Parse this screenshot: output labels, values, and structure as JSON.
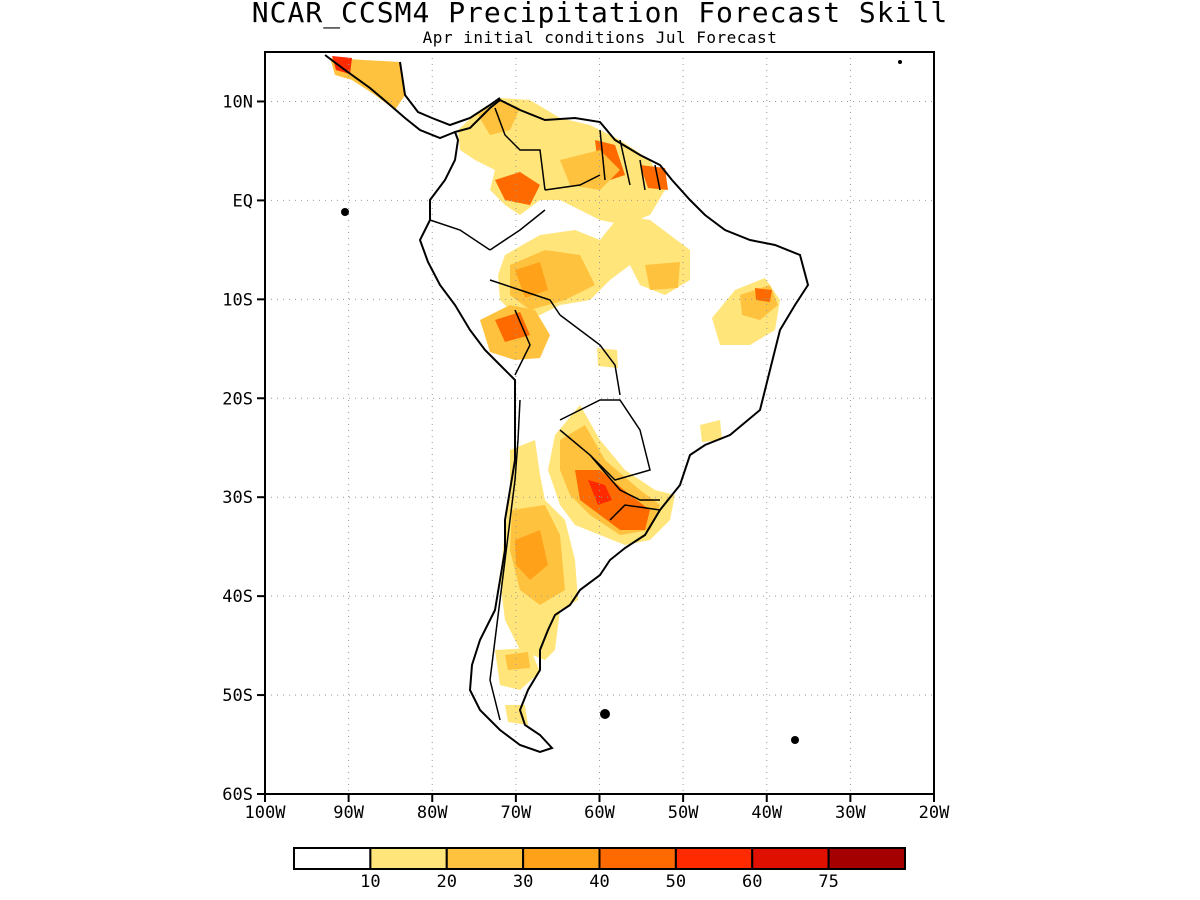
{
  "title": "NCAR_CCSM4 Precipitation Forecast Skill",
  "subtitle": "Apr initial conditions  Jul Forecast",
  "map": {
    "lon_range": [
      -100,
      -20
    ],
    "lat_range": [
      -60,
      15
    ],
    "lat_ticks": [
      {
        "value": 10,
        "label": "10N"
      },
      {
        "value": 0,
        "label": "EQ"
      },
      {
        "value": -10,
        "label": "10S"
      },
      {
        "value": -20,
        "label": "20S"
      },
      {
        "value": -30,
        "label": "30S"
      },
      {
        "value": -40,
        "label": "40S"
      },
      {
        "value": -50,
        "label": "50S"
      },
      {
        "value": -60,
        "label": "60S"
      }
    ],
    "lon_ticks": [
      {
        "value": -100,
        "label": "100W"
      },
      {
        "value": -90,
        "label": "90W"
      },
      {
        "value": -80,
        "label": "80W"
      },
      {
        "value": -70,
        "label": "70W"
      },
      {
        "value": -60,
        "label": "60W"
      },
      {
        "value": -50,
        "label": "50W"
      },
      {
        "value": -40,
        "label": "40W"
      },
      {
        "value": -30,
        "label": "30W"
      },
      {
        "value": -20,
        "label": "20W"
      }
    ],
    "grid": "dotted",
    "colorbar": {
      "colors": [
        "#ffffff",
        "#ffe57a",
        "#ffc23f",
        "#ffa21a",
        "#ff6a00",
        "#ff2a00",
        "#e01000",
        "#a50000"
      ],
      "labels": [
        "10",
        "20",
        "30",
        "40",
        "50",
        "60",
        "75"
      ]
    }
  }
}
